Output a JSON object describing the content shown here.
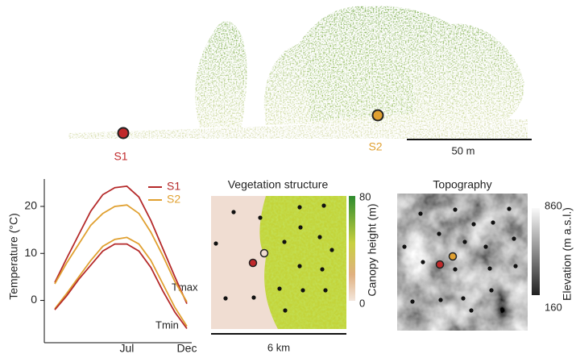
{
  "chart_data": [
    {
      "type": "line",
      "y_label": "Temperature (°C)",
      "categories": [
        null,
        null,
        null,
        null,
        null,
        null,
        "Jul",
        null,
        null,
        null,
        null,
        "Dec"
      ],
      "series": [
        {
          "name": "S1",
          "color": "#b52a2a",
          "values": [
            3.8,
            9,
            14,
            19,
            22.5,
            24,
            24.3,
            22,
            17,
            11,
            5,
            -0.7
          ]
        },
        {
          "name": "S2",
          "color": "#e0a030",
          "values": [
            3.5,
            8,
            12,
            16,
            18.5,
            20,
            20.3,
            18.5,
            14.5,
            9.5,
            4,
            -0.3
          ]
        },
        {
          "color": "#e0a030",
          "values": [
            -1.8,
            1.5,
            5,
            8.5,
            11.5,
            13,
            13.4,
            12,
            8.5,
            3.5,
            -1.5,
            -5.5
          ]
        },
        {
          "color": "#b52a2a",
          "values": [
            -2,
            1,
            4.5,
            7.5,
            10.5,
            12,
            12,
            10.5,
            7,
            2,
            -2.5,
            -6
          ]
        }
      ],
      "annotations": [
        "Tmax",
        "Tmin"
      ],
      "ylim": [
        -9,
        26
      ],
      "yticks": [
        0,
        10,
        20
      ]
    }
  ],
  "lidar": {
    "site_1": "S1",
    "site_2": "S2",
    "scale": "50 m"
  },
  "vegetation": {
    "title": "Vegetation structure",
    "colorbar_max": "80",
    "colorbar_min": "0",
    "colorbar_label": "Canopy height (m)",
    "scale": "6 km"
  },
  "topography": {
    "title": "Topography",
    "colorbar_max": "860",
    "colorbar_min": "160",
    "colorbar_label": "Elevation (m a.s.l.)"
  }
}
